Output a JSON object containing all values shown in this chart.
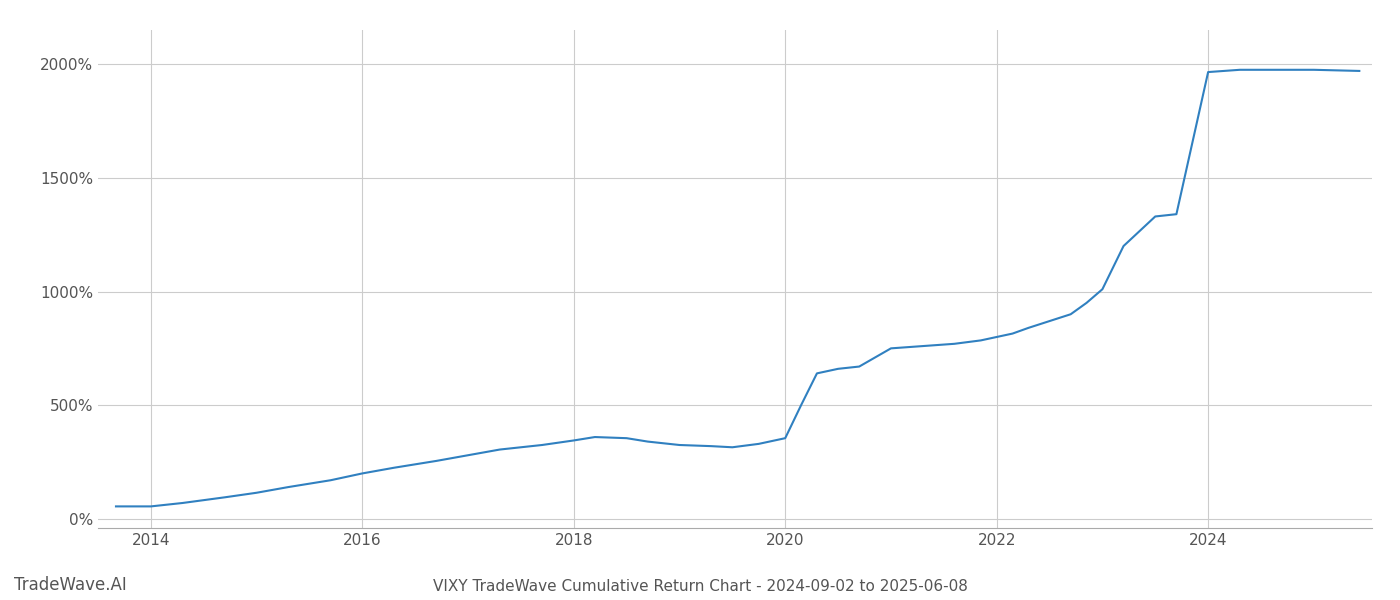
{
  "title": "VIXY TradeWave Cumulative Return Chart - 2024-09-02 to 2025-06-08",
  "watermark": "TradeWave.AI",
  "line_color": "#3080c0",
  "background_color": "#ffffff",
  "grid_color": "#cccccc",
  "data_x": [
    2013.67,
    2014.0,
    2014.3,
    2014.7,
    2015.0,
    2015.3,
    2015.7,
    2016.0,
    2016.3,
    2016.7,
    2017.0,
    2017.3,
    2017.7,
    2018.0,
    2018.2,
    2018.5,
    2018.7,
    2019.0,
    2019.3,
    2019.5,
    2019.75,
    2020.0,
    2020.15,
    2020.3,
    2020.5,
    2020.7,
    2021.0,
    2021.3,
    2021.6,
    2021.85,
    2022.0,
    2022.15,
    2022.3,
    2022.5,
    2022.7,
    2022.85,
    2023.0,
    2023.2,
    2023.5,
    2023.7,
    2024.0,
    2024.3,
    2024.6,
    2025.0,
    2025.43
  ],
  "data_y": [
    55,
    55,
    70,
    95,
    115,
    140,
    170,
    200,
    225,
    255,
    280,
    305,
    325,
    345,
    360,
    355,
    340,
    325,
    320,
    315,
    330,
    355,
    500,
    640,
    660,
    670,
    750,
    760,
    770,
    785,
    800,
    815,
    840,
    870,
    900,
    950,
    1010,
    1200,
    1330,
    1340,
    1965,
    1975,
    1975,
    1975,
    1970
  ],
  "xlim": [
    2013.5,
    2025.55
  ],
  "ylim": [
    -40,
    2150
  ],
  "yticks": [
    0,
    500,
    1000,
    1500,
    2000
  ],
  "ytick_labels": [
    "0%",
    "500%",
    "1000%",
    "1500%",
    "2000%"
  ],
  "xticks": [
    2014,
    2016,
    2018,
    2020,
    2022,
    2024
  ],
  "line_width": 1.5,
  "title_fontsize": 11,
  "tick_fontsize": 11,
  "watermark_fontsize": 12
}
